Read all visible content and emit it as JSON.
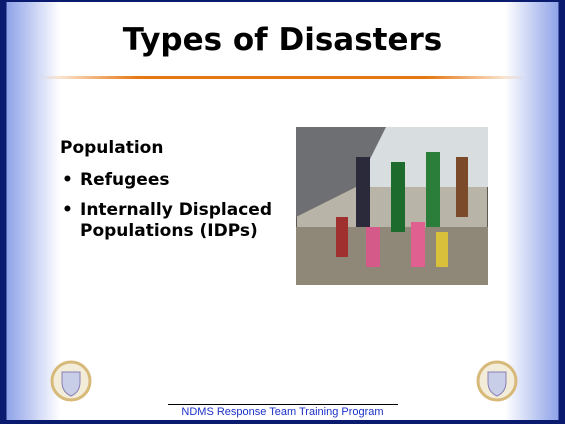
{
  "slide": {
    "title": "Types of Disasters",
    "heading": "Population",
    "bullets": [
      "Refugees",
      "Internally Displaced Populations (IDPs)"
    ],
    "footer": "NDMS Response Team Training Program"
  }
}
